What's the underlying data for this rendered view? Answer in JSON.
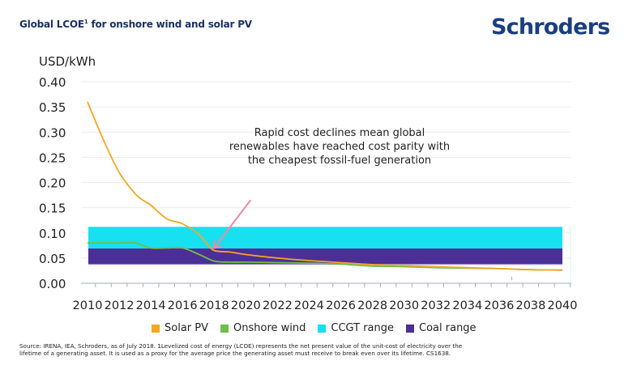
{
  "header": {
    "title": "Global LCOE",
    "title_sup": "1",
    "title_rest": " for onshore wind and solar PV",
    "brand": "Schroders"
  },
  "chart_data": {
    "type": "line",
    "title": "Global LCOE¹ for onshore wind and solar PV",
    "ylabel": "USD/kWh",
    "xlabel": "",
    "ylim": [
      0,
      0.4
    ],
    "yticks": [
      "0.00",
      "0.05",
      "0.10",
      "0.15",
      "0.20",
      "0.25",
      "0.30",
      "0.35",
      "0.40"
    ],
    "xlim": [
      2010,
      2040
    ],
    "xticks": [
      "2010",
      "2012",
      "2014",
      "2016",
      "2018",
      "2020",
      "2022",
      "2024",
      "2026",
      "2028",
      "2030",
      "2032",
      "2034",
      "2036",
      "2038",
      "2040"
    ],
    "grid": true,
    "series": [
      {
        "name": "Solar PV",
        "color": "#f5a623",
        "x": [
          2010,
          2011,
          2012,
          2013,
          2013.5,
          2014,
          2015,
          2016,
          2017,
          2017.5,
          2018,
          2019,
          2020,
          2022,
          2024,
          2026,
          2028,
          2030,
          2032,
          2034,
          2036,
          2038,
          2040
        ],
        "values": [
          0.36,
          0.285,
          0.22,
          0.178,
          0.165,
          0.155,
          0.128,
          0.118,
          0.098,
          0.08,
          0.065,
          0.062,
          0.057,
          0.05,
          0.045,
          0.041,
          0.037,
          0.035,
          0.033,
          0.031,
          0.029,
          0.027,
          0.026
        ]
      },
      {
        "name": "Onshore wind",
        "color": "#6cc04a",
        "x": [
          2010,
          2011,
          2012,
          2013,
          2014,
          2015,
          2016,
          2017,
          2018,
          2019,
          2020,
          2022,
          2024,
          2026,
          2028,
          2030,
          2032,
          2034,
          2036,
          2038,
          2040
        ],
        "values": [
          0.08,
          0.08,
          0.08,
          0.08,
          0.07,
          0.07,
          0.07,
          0.058,
          0.044,
          0.042,
          0.042,
          0.041,
          0.04,
          0.038,
          0.034,
          0.033,
          0.031,
          0.03,
          0.029,
          0.027,
          0.026
        ]
      }
    ],
    "ranges": [
      {
        "name": "CCGT range",
        "color": "#17e0f0",
        "low": 0.069,
        "high": 0.112,
        "x": [
          2010,
          2040
        ]
      },
      {
        "name": "Coal range",
        "color": "#4b2f96",
        "low": 0.038,
        "high": 0.069,
        "x": [
          2010,
          2040
        ]
      }
    ],
    "annotation": {
      "lines": [
        "Rapid cost declines mean global",
        "renewables have reached cost parity with",
        "the cheapest fossil-fuel generation"
      ],
      "arrow_color": "#f08aa0",
      "arrow_target": {
        "x": 2018,
        "y": 0.07
      },
      "arrow_from": {
        "x": 2020.3,
        "y": 0.165
      }
    },
    "legend": [
      {
        "label": "Solar PV",
        "color": "#f5a623"
      },
      {
        "label": "Onshore wind",
        "color": "#6cc04a"
      },
      {
        "label": "CCGT range",
        "color": "#17e0f0"
      },
      {
        "label": "Coal range",
        "color": "#4b2f96"
      }
    ],
    "legend_position": "bottom"
  },
  "footnote": {
    "line1": "Source: IRENA, IEA, Schroders, as of July 2018. 1Levelized cost of energy (LCOE) represents the net present value of the unit-cost of electricity over the",
    "line2": "lifetime of a generating asset. It is used as a proxy for the average price the generating asset must receive to break even over its lifetime. CS1638."
  }
}
